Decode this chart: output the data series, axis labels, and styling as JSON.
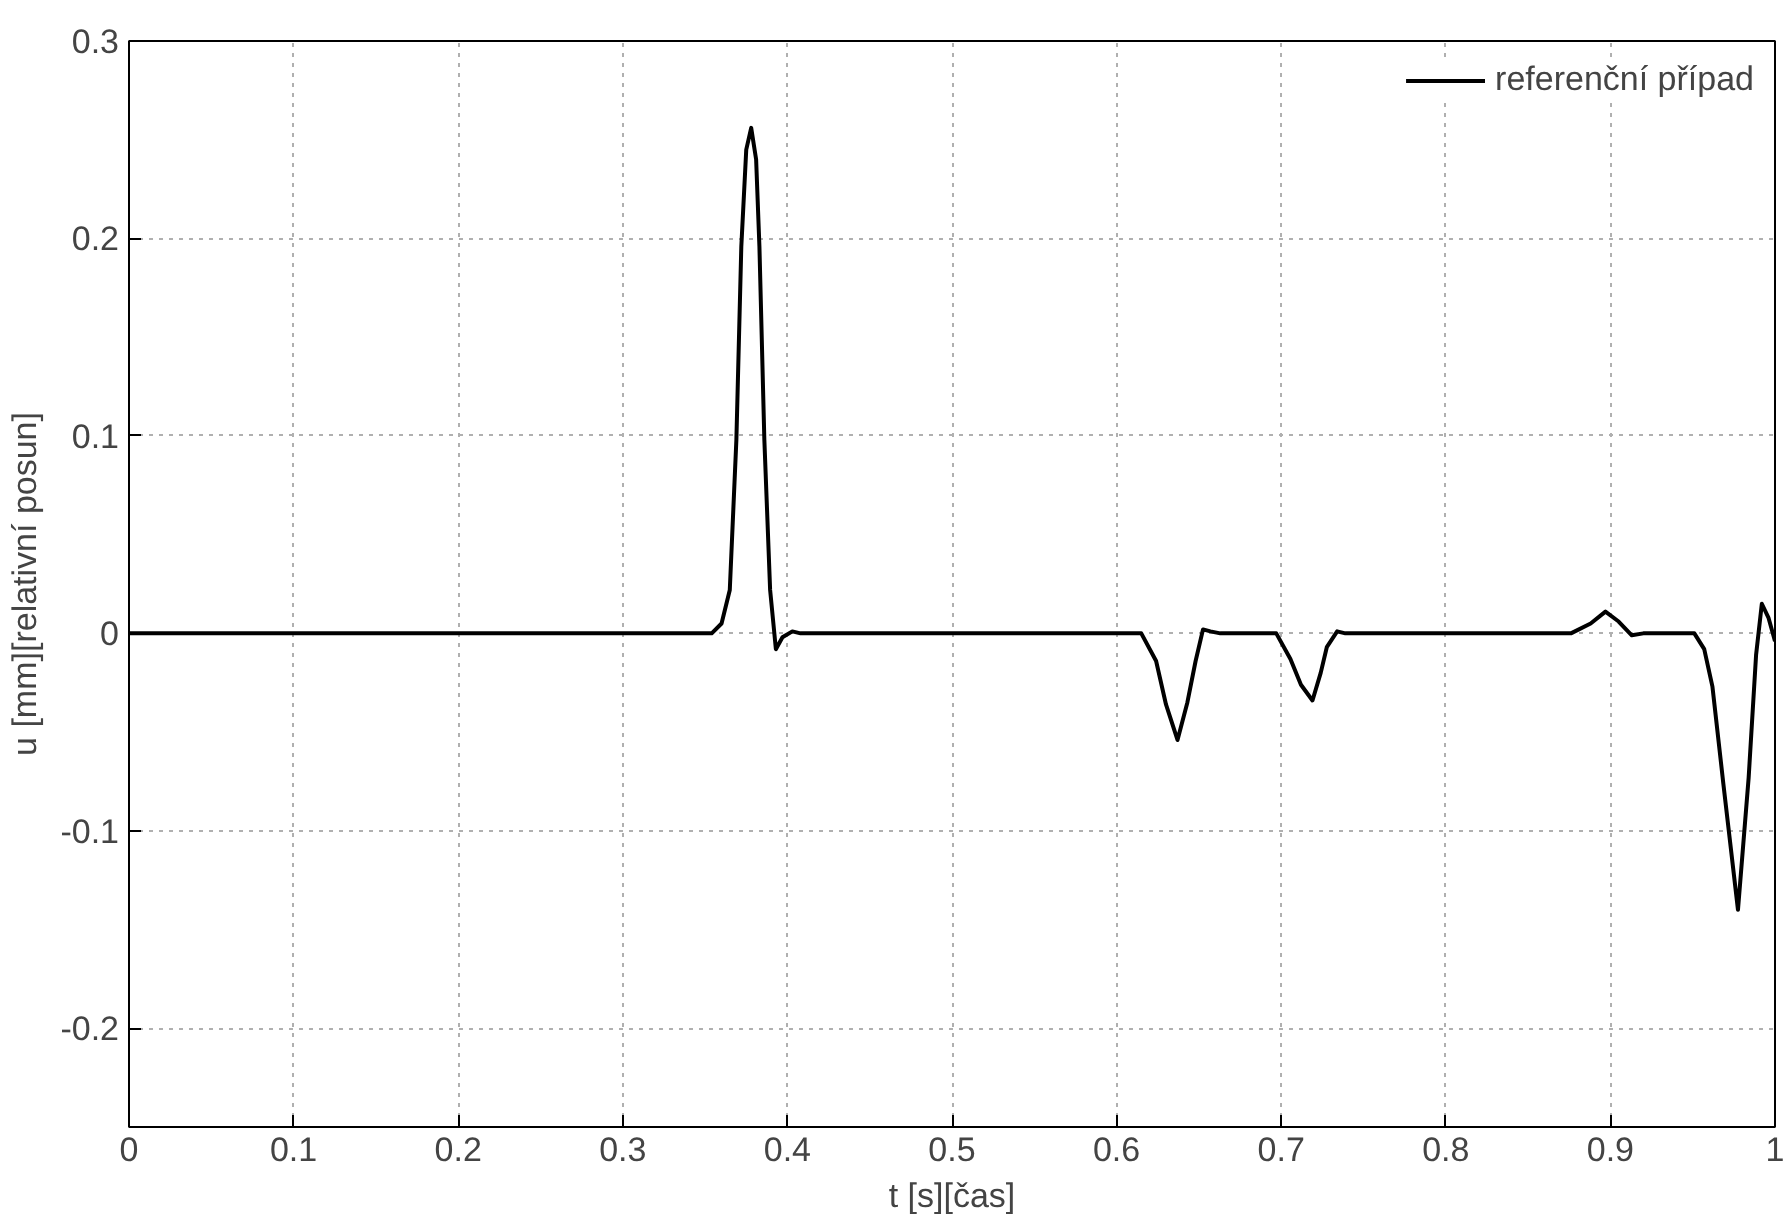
{
  "chart_data": {
    "type": "line",
    "xlabel": "t [s][čas]",
    "ylabel": "u [mm][relativní posun]",
    "x": [
      0,
      0.354,
      0.36,
      0.365,
      0.369,
      0.372,
      0.375,
      0.378,
      0.381,
      0.383,
      0.386,
      0.3895,
      0.393,
      0.397,
      0.403,
      0.408,
      0.42,
      0.615,
      0.624,
      0.63,
      0.637,
      0.643,
      0.648,
      0.6525,
      0.657,
      0.663,
      0.697,
      0.7056,
      0.712,
      0.719,
      0.724,
      0.7277,
      0.734,
      0.739,
      0.876,
      0.888,
      0.897,
      0.905,
      0.913,
      0.92,
      0.951,
      0.957,
      0.962,
      0.9686,
      0.9775,
      0.984,
      0.9885,
      0.992,
      0.996,
      1.0
    ],
    "series": [
      {
        "name": "referenční případ",
        "color": "#000000",
        "values": [
          0,
          0,
          0.005,
          0.022,
          0.098,
          0.196,
          0.245,
          0.256,
          0.24,
          0.196,
          0.098,
          0.022,
          -0.008,
          -0.002,
          0.001,
          0,
          0,
          0,
          -0.014,
          -0.036,
          -0.054,
          -0.035,
          -0.014,
          0.002,
          0.001,
          0,
          0,
          -0.013,
          -0.026,
          -0.034,
          -0.02,
          -0.007,
          0.001,
          0,
          0,
          0.005,
          0.011,
          0.006,
          -0.001,
          0,
          0,
          -0.008,
          -0.027,
          -0.076,
          -0.14,
          -0.073,
          -0.011,
          0.015,
          0.008,
          -0.004
        ]
      }
    ],
    "xlim": [
      0,
      1
    ],
    "ylim": [
      -0.25,
      0.3
    ],
    "xticks": [
      0,
      0.1,
      0.2,
      0.3,
      0.4,
      0.5,
      0.6,
      0.7,
      0.8,
      0.9,
      1
    ],
    "yticks": [
      -0.2,
      -0.1,
      0,
      0.1,
      0.2,
      0.3
    ],
    "grid": true,
    "legend": "top right",
    "line_style": "solid",
    "marker": "none"
  }
}
